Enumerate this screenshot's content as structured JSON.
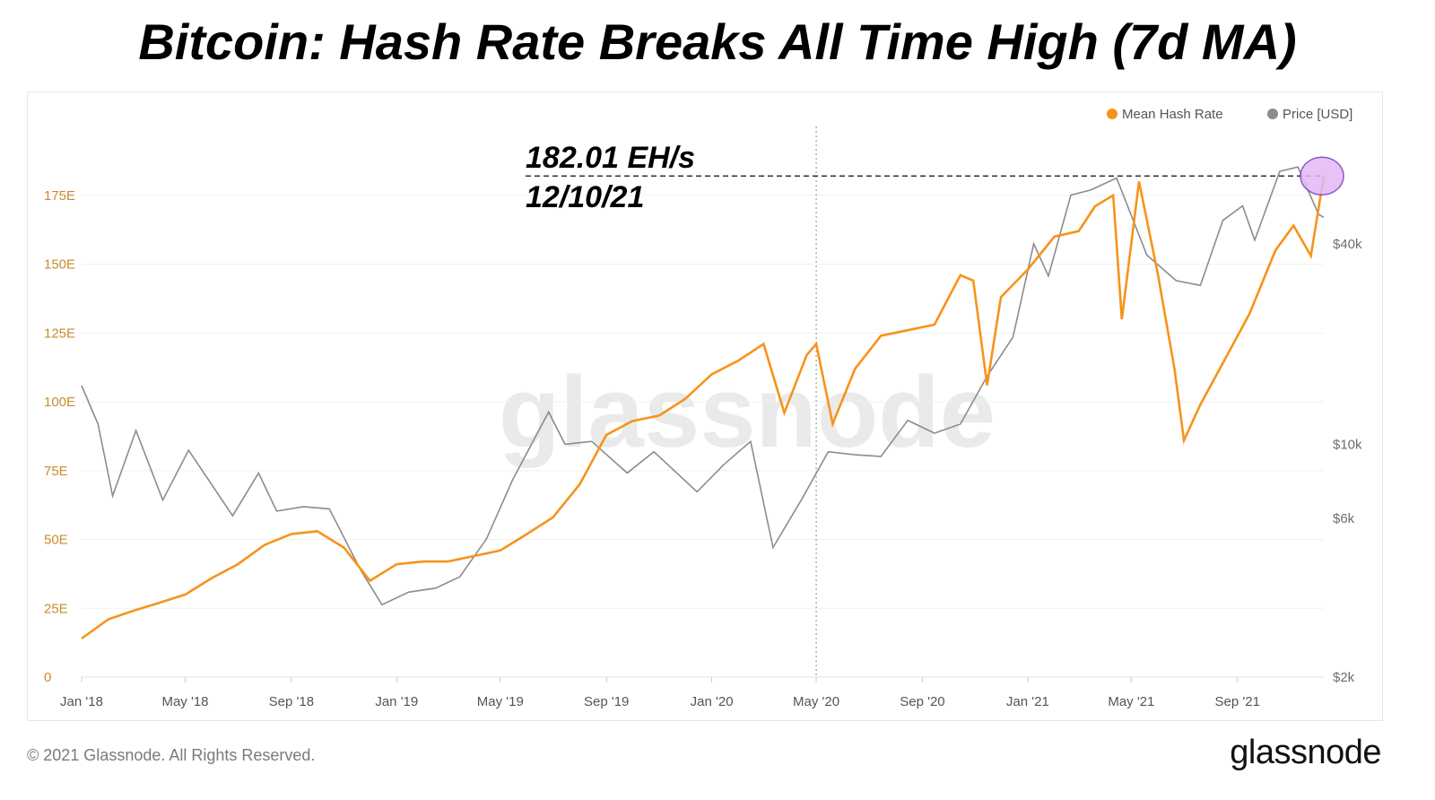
{
  "title": "Bitcoin: Hash Rate Breaks All Time High (7d MA)",
  "footer": {
    "copyright": "© 2021 Glassnode. All Rights Reserved.",
    "logo_text": "glassnode"
  },
  "watermark": "glassnode",
  "annotation": {
    "value": "182.01 EH/s",
    "date": "12/10/21"
  },
  "colors": {
    "hash_rate": "#f7931a",
    "price": "#8c8c8c",
    "highlight": "#e3b8f5",
    "highlight_stroke": "#7a3fb8"
  },
  "chart_data": {
    "type": "line",
    "x_ticks": [
      "Jan '18",
      "May '18",
      "Sep '18",
      "Jan '19",
      "May '19",
      "Sep '19",
      "Jan '20",
      "May '20",
      "Sep '20",
      "Jan '21",
      "May '21",
      "Sep '21"
    ],
    "y_left": {
      "ticks": [
        "0",
        "25E",
        "50E",
        "75E",
        "100E",
        "125E",
        "150E",
        "175E"
      ],
      "range": [
        0,
        200
      ]
    },
    "y_right": {
      "ticks": [
        "$2k",
        "$6k",
        "$10k",
        "$40k"
      ],
      "scale": "log"
    },
    "legend": {
      "position": "top-right",
      "items": [
        "Mean Hash Rate",
        "Price [USD]"
      ]
    },
    "series": [
      {
        "name": "Mean Hash Rate",
        "axis": "left",
        "points": [
          [
            "2018-01-01",
            14
          ],
          [
            "2018-02-01",
            21
          ],
          [
            "2018-03-01",
            24
          ],
          [
            "2018-04-01",
            27
          ],
          [
            "2018-05-01",
            30
          ],
          [
            "2018-06-01",
            36
          ],
          [
            "2018-07-01",
            41
          ],
          [
            "2018-08-01",
            48
          ],
          [
            "2018-09-01",
            52
          ],
          [
            "2018-10-01",
            53
          ],
          [
            "2018-11-01",
            47
          ],
          [
            "2018-12-01",
            35
          ],
          [
            "2019-01-01",
            41
          ],
          [
            "2019-02-01",
            42
          ],
          [
            "2019-03-01",
            42
          ],
          [
            "2019-04-01",
            44
          ],
          [
            "2019-05-01",
            46
          ],
          [
            "2019-06-01",
            52
          ],
          [
            "2019-07-01",
            58
          ],
          [
            "2019-08-01",
            70
          ],
          [
            "2019-09-01",
            88
          ],
          [
            "2019-10-01",
            93
          ],
          [
            "2019-11-01",
            95
          ],
          [
            "2019-12-01",
            101
          ],
          [
            "2020-01-01",
            110
          ],
          [
            "2020-02-01",
            115
          ],
          [
            "2020-03-01",
            121
          ],
          [
            "2020-03-25",
            96
          ],
          [
            "2020-04-20",
            117
          ],
          [
            "2020-05-01",
            121
          ],
          [
            "2020-05-20",
            92
          ],
          [
            "2020-06-15",
            112
          ],
          [
            "2020-07-15",
            124
          ],
          [
            "2020-08-15",
            126
          ],
          [
            "2020-09-15",
            128
          ],
          [
            "2020-10-15",
            146
          ],
          [
            "2020-10-30",
            144
          ],
          [
            "2020-11-15",
            106
          ],
          [
            "2020-12-01",
            138
          ],
          [
            "2021-01-01",
            148
          ],
          [
            "2021-02-01",
            160
          ],
          [
            "2021-03-01",
            162
          ],
          [
            "2021-03-20",
            171
          ],
          [
            "2021-04-10",
            175
          ],
          [
            "2021-04-20",
            130
          ],
          [
            "2021-05-10",
            180
          ],
          [
            "2021-06-01",
            146
          ],
          [
            "2021-06-20",
            112
          ],
          [
            "2021-07-01",
            86
          ],
          [
            "2021-07-20",
            99
          ],
          [
            "2021-08-15",
            114
          ],
          [
            "2021-09-15",
            132
          ],
          [
            "2021-10-15",
            155
          ],
          [
            "2021-11-05",
            164
          ],
          [
            "2021-11-25",
            153
          ],
          [
            "2021-12-10",
            182
          ]
        ]
      },
      {
        "name": "Price [USD]",
        "axis": "right",
        "points": [
          [
            "2018-01-01",
            15000
          ],
          [
            "2018-01-20",
            11500
          ],
          [
            "2018-02-06",
            7000
          ],
          [
            "2018-03-05",
            11000
          ],
          [
            "2018-04-05",
            6800
          ],
          [
            "2018-05-05",
            9600
          ],
          [
            "2018-06-25",
            6100
          ],
          [
            "2018-07-25",
            8200
          ],
          [
            "2018-08-15",
            6300
          ],
          [
            "2018-09-15",
            6500
          ],
          [
            "2018-10-15",
            6400
          ],
          [
            "2018-11-20",
            4200
          ],
          [
            "2018-12-15",
            3300
          ],
          [
            "2019-01-15",
            3600
          ],
          [
            "2019-02-15",
            3700
          ],
          [
            "2019-03-15",
            4000
          ],
          [
            "2019-04-15",
            5200
          ],
          [
            "2019-05-15",
            7800
          ],
          [
            "2019-06-26",
            12500
          ],
          [
            "2019-07-15",
            10000
          ],
          [
            "2019-08-15",
            10200
          ],
          [
            "2019-09-25",
            8200
          ],
          [
            "2019-10-26",
            9500
          ],
          [
            "2019-12-15",
            7200
          ],
          [
            "2020-01-15",
            8700
          ],
          [
            "2020-02-15",
            10200
          ],
          [
            "2020-03-12",
            4900
          ],
          [
            "2020-04-15",
            6900
          ],
          [
            "2020-05-15",
            9500
          ],
          [
            "2020-06-15",
            9300
          ],
          [
            "2020-07-15",
            9200
          ],
          [
            "2020-08-15",
            11800
          ],
          [
            "2020-09-15",
            10800
          ],
          [
            "2020-10-15",
            11500
          ],
          [
            "2020-11-15",
            16000
          ],
          [
            "2020-12-15",
            21000
          ],
          [
            "2021-01-08",
            40000
          ],
          [
            "2021-01-25",
            32000
          ],
          [
            "2021-02-20",
            56000
          ],
          [
            "2021-03-15",
            58000
          ],
          [
            "2021-04-14",
            63000
          ],
          [
            "2021-05-19",
            37000
          ],
          [
            "2021-06-22",
            31000
          ],
          [
            "2021-07-20",
            30000
          ],
          [
            "2021-08-15",
            47000
          ],
          [
            "2021-09-07",
            52000
          ],
          [
            "2021-09-21",
            41000
          ],
          [
            "2021-10-20",
            66000
          ],
          [
            "2021-11-10",
            68000
          ],
          [
            "2021-12-04",
            49000
          ],
          [
            "2021-12-10",
            48000
          ]
        ]
      }
    ]
  }
}
